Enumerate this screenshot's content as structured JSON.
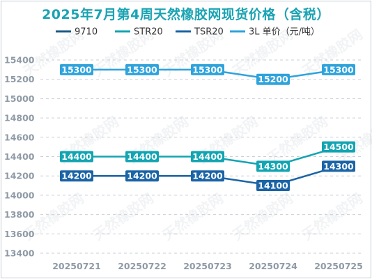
{
  "chart_data": {
    "type": "line",
    "title": "2025年7月第4周天然橡胶网现货价格（含税）",
    "categories": [
      "20250721",
      "20250722",
      "20250723",
      "20250724",
      "20250725"
    ],
    "series": [
      {
        "name": "9710",
        "values": [
          null,
          null,
          null,
          null,
          null
        ],
        "color": "#1f5a86"
      },
      {
        "name": "STR20",
        "values": [
          14400,
          14400,
          14400,
          14300,
          14500
        ],
        "color": "#13a4b2"
      },
      {
        "name": "TSR20",
        "values": [
          14200,
          14200,
          14200,
          14100,
          14300
        ],
        "color": "#1b64a6"
      },
      {
        "name": "3L 单价（元/吨）",
        "values": [
          15300,
          15300,
          15300,
          15200,
          15300
        ],
        "color": "#2ea3dc"
      }
    ],
    "ylim": [
      13400,
      15400
    ],
    "yticks": [
      13400,
      13600,
      13800,
      14000,
      14200,
      14400,
      14600,
      14800,
      15000,
      15200,
      15400
    ],
    "grid": true,
    "legend_position": "top",
    "title_color": "#1aa3b3",
    "watermark": "天然橡胶网"
  }
}
